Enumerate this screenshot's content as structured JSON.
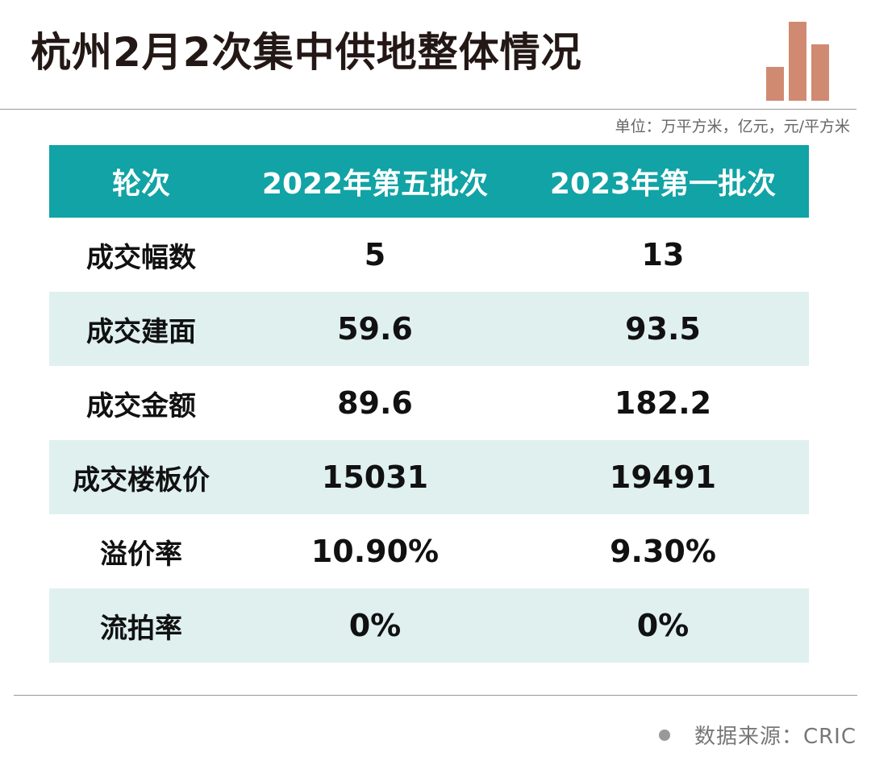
{
  "title": "杭州2月2次集中供地整体情况",
  "unit_note": "单位：万平方米，亿元，元/平方米",
  "logo": {
    "icon": "bar-chart-logo-icon",
    "color": "#d18a72"
  },
  "table": {
    "header_color": "#11a3a5",
    "alt_row_color": "#dff0ef",
    "headers": [
      "轮次",
      "2022年第五批次",
      "2023年第一批次"
    ],
    "rows": [
      [
        "成交幅数",
        "5",
        "13"
      ],
      [
        "成交建面",
        "59.6",
        "93.5"
      ],
      [
        "成交金额",
        "89.6",
        "182.2"
      ],
      [
        "成交楼板价",
        "15031",
        "19491"
      ],
      [
        "溢价率",
        "10.90%",
        "9.30%"
      ],
      [
        "流拍率",
        "0%",
        "0%"
      ]
    ]
  },
  "source": "数据来源：CRIC"
}
